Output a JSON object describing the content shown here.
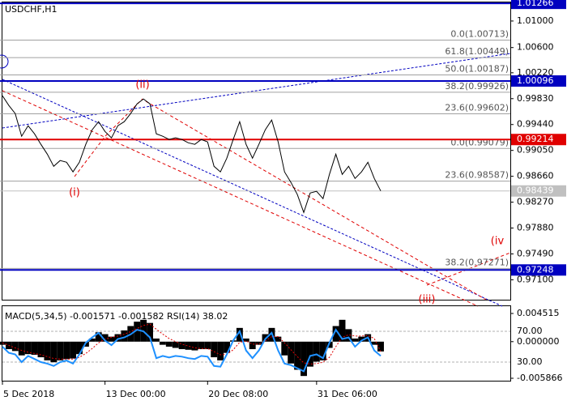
{
  "chart_data": [
    {
      "type": "line",
      "title": "USDCHF,H1",
      "categories": [
        "5 Dec 2018",
        null,
        null,
        null,
        null,
        null,
        null,
        null,
        null,
        null,
        null,
        null,
        null,
        null,
        null,
        null,
        "13 Dec 00:00",
        null,
        null,
        null,
        null,
        null,
        null,
        null,
        null,
        null,
        null,
        null,
        null,
        null,
        null,
        null,
        "20 Dec 08:00",
        null,
        null,
        null,
        null,
        null,
        null,
        null,
        null,
        null,
        null,
        null,
        null,
        null,
        null,
        null,
        null,
        "31 Dec 06:00",
        null,
        null,
        null,
        null,
        null,
        null,
        null,
        null,
        null,
        null
      ],
      "series": [
        {
          "color": "#000000",
          "values": [
            0.99874,
            0.99727,
            0.99605,
            0.99263,
            0.99422,
            0.993,
            0.99141,
            0.98994,
            0.98811,
            0.98897,
            0.98872,
            0.98726,
            0.98872,
            0.99141,
            0.99361,
            0.99483,
            0.99336,
            0.99239,
            0.99422,
            0.99483,
            0.99605,
            0.99752,
            0.99825,
            0.99752,
            0.993,
            0.99263,
            0.99214,
            0.99239,
            0.99214,
            0.99165,
            0.99141,
            0.99214,
            0.99178,
            0.98811,
            0.98726,
            0.98933,
            0.99214,
            0.99483,
            0.99141,
            0.98933,
            0.99141,
            0.99361,
            0.99507,
            0.99178,
            0.98726,
            0.98567,
            0.98384,
            0.98115,
            0.98408,
            0.98433,
            0.98323,
            0.98689,
            0.98994,
            0.98689,
            0.98811,
            0.98628,
            0.98726,
            0.98872,
            0.98628,
            0.98439
          ]
        }
      ],
      "ylim": [
        0.968,
        1.0128
      ],
      "yticks": [
        {
          "value": 1.01,
          "label": "1.01000"
        },
        {
          "value": 1.006,
          "label": "1.00600"
        },
        {
          "value": 1.0022,
          "label": "1.00220"
        },
        {
          "value": 0.9983,
          "label": "0.99830"
        },
        {
          "value": 0.9944,
          "label": "0.99440"
        },
        {
          "value": 0.9905,
          "label": "0.99050"
        },
        {
          "value": 0.9866,
          "label": "0.98660"
        },
        {
          "value": 0.9827,
          "label": "0.98270"
        },
        {
          "value": 0.9788,
          "label": "0.97880"
        },
        {
          "value": 0.9749,
          "label": "0.97490"
        },
        {
          "value": 0.971,
          "label": "0.97100"
        }
      ],
      "levels": [
        {
          "value": 1.01266,
          "label": "1.01266",
          "color": "#0000c0"
        },
        {
          "value": 1.00096,
          "label": "1.00096",
          "color": "#0000c0"
        },
        {
          "value": 0.99214,
          "label": "0.99214",
          "color": "#e00000"
        },
        {
          "value": 0.98439,
          "label": "0.98439",
          "color": "#c0c0c0"
        },
        {
          "value": 0.97248,
          "label": "0.97248",
          "color": "#0000c0"
        }
      ],
      "fib_levels": [
        {
          "value": 1.00713,
          "label": "0.0(1.00713)"
        },
        {
          "value": 1.00449,
          "label": "61.8(1.00449)"
        },
        {
          "value": 1.00187,
          "label": "50.0(1.00187)"
        },
        {
          "value": 0.99926,
          "label": "38.2(0.99926)"
        },
        {
          "value": 0.99602,
          "label": "23.6(0.99602)"
        },
        {
          "value": 0.99079,
          "label": "0.0(0.99079)"
        },
        {
          "value": 0.98587,
          "label": "23.6(0.98587)"
        },
        {
          "value": 0.97271,
          "label": "38.2(0.97271)"
        }
      ],
      "annotations": [
        {
          "text": "(i)",
          "color": "#e00000"
        },
        {
          "text": "(ii)",
          "color": "#e00000"
        },
        {
          "text": "(iii)",
          "color": "#e00000"
        },
        {
          "text": "(iv",
          "color": "#e00000"
        }
      ]
    },
    {
      "type": "macd",
      "title": "MACD(5,34,5) -0.001571 -0.001582 RSI(14) 38.02",
      "series": [
        {
          "color": "#000000",
          "values": [
            -0.0005,
            -0.0012,
            -0.0015,
            -0.0022,
            -0.002,
            -0.0021,
            -0.0025,
            -0.003,
            -0.0033,
            -0.003,
            -0.0028,
            -0.0027,
            -0.002,
            -0.0008,
            0.0005,
            0.0015,
            0.0012,
            0.0008,
            0.0012,
            0.0018,
            0.0025,
            0.0032,
            0.0035,
            0.003,
            0.0005,
            -0.0005,
            -0.0008,
            -0.001,
            -0.0012,
            -0.0013,
            -0.0014,
            -0.0012,
            -0.0012,
            -0.0025,
            -0.003,
            -0.0018,
            0.0002,
            0.0022,
            0.0005,
            -0.0012,
            -0.0005,
            0.0012,
            0.0022,
            0.0008,
            -0.0022,
            -0.0035,
            -0.0045,
            -0.0055,
            -0.004,
            -0.0032,
            -0.003,
            -0.001,
            0.0025,
            0.0035,
            0.002,
            0.0005,
            0.0008,
            0.0012,
            -0.0005,
            -0.001571
          ]
        },
        {
          "color": "#e00000",
          "values": [
            -0.0002,
            -0.0006,
            -0.001,
            -0.0014,
            -0.0017,
            -0.0019,
            -0.0021,
            -0.0024,
            -0.0027,
            -0.0028,
            -0.0028,
            -0.0028,
            -0.0025,
            -0.0019,
            -0.0011,
            -0.0002,
            0.0004,
            0.0007,
            0.0009,
            0.0012,
            0.0016,
            0.0021,
            0.0026,
            0.0028,
            0.002,
            0.0012,
            0.0005,
            0,
            -0.0004,
            -0.0007,
            -0.001,
            -0.0011,
            -0.0011,
            -0.0016,
            -0.0021,
            -0.002,
            -0.0013,
            -0.0001,
            0.0001,
            -0.0004,
            -0.0004,
            0.0001,
            0.0008,
            0.0008,
            -0.0002,
            -0.0013,
            -0.0024,
            -0.0034,
            -0.0036,
            -0.0035,
            -0.0033,
            -0.0025,
            -0.0008,
            0.0007,
            0.0011,
            0.0009,
            0.0009,
            0.001,
            0.0005,
            -0.001582
          ]
        },
        {
          "color": "#1e90ff",
          "axis": "y2",
          "values": [
            50,
            42,
            40,
            30,
            38,
            34,
            30,
            28,
            25,
            30,
            32,
            28,
            40,
            55,
            62,
            68,
            58,
            52,
            60,
            62,
            66,
            72,
            70,
            62,
            35,
            38,
            36,
            38,
            37,
            35,
            34,
            38,
            37,
            25,
            24,
            40,
            58,
            70,
            45,
            35,
            45,
            60,
            68,
            45,
            28,
            26,
            22,
            18,
            38,
            40,
            35,
            55,
            72,
            60,
            62,
            50,
            58,
            62,
            45,
            38.02
          ]
        }
      ],
      "ylim": [
        -0.006255,
        0.005683
      ],
      "yticks": [
        0.004515,
        {
          "value": 0,
          "label": "0.000000"
        },
        -0.005866
      ],
      "y2lim": [
        5.8,
        102.6
      ],
      "y2ticks": [
        {
          "value": 70,
          "label": "70.00"
        },
        {
          "value": 30,
          "label": "30.00"
        }
      ]
    }
  ]
}
